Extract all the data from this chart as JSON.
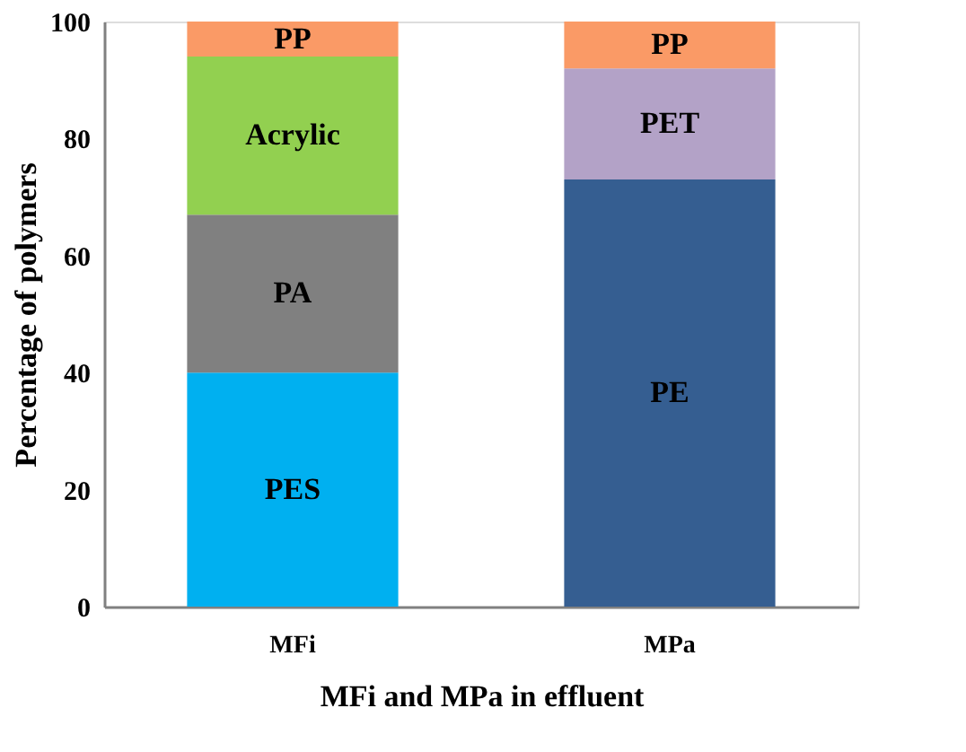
{
  "chart_data": {
    "type": "bar",
    "stacked": true,
    "xlabel": "MFi and MPa in effluent",
    "ylabel": "Percentage of polymers",
    "categories": [
      "MFi",
      "MPa"
    ],
    "series": [
      {
        "name": "PES",
        "color": "#00b0f0",
        "values": [
          40,
          null
        ]
      },
      {
        "name": "PE",
        "color": "#355e91",
        "values": [
          null,
          73
        ]
      },
      {
        "name": "PA",
        "color": "#808080",
        "values": [
          27,
          null
        ]
      },
      {
        "name": "PET",
        "color": "#b3a2c7",
        "values": [
          null,
          19
        ]
      },
      {
        "name": "Acrylic",
        "color": "#92d050",
        "values": [
          27,
          null
        ]
      },
      {
        "name": "PP",
        "color": "#fa9a66",
        "values": [
          6,
          8
        ]
      }
    ],
    "ylim": [
      0,
      100
    ],
    "yticks": [
      0,
      20,
      40,
      60,
      80,
      100
    ],
    "grid": false,
    "legend": false
  }
}
